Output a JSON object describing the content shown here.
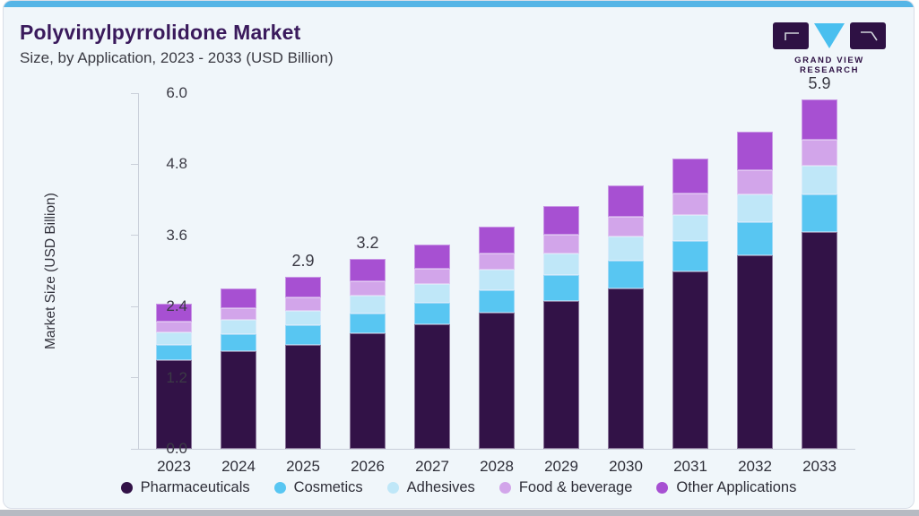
{
  "header": {
    "title": "Polyvinylpyrrolidone Market",
    "subtitle": "Size, by Application, 2023 - 2033 (USD Billion)"
  },
  "logo": {
    "text": "GRAND VIEW RESEARCH",
    "square_color": "#2e1144",
    "triangle_color": "#49bfef"
  },
  "colors": {
    "top_bar": "#55b5e6",
    "card_background": "#f0f6fa",
    "title_text": "#3a1a5c",
    "axis_line": "#c9cfd9",
    "tick_text": "#3b3b45"
  },
  "chart_data": {
    "type": "bar",
    "stacked": true,
    "title": "Polyvinylpyrrolidone Market Size, by Application, 2023 - 2033 (USD Billion)",
    "categories": [
      "2023",
      "2024",
      "2025",
      "2026",
      "2027",
      "2028",
      "2029",
      "2030",
      "2031",
      "2032",
      "2033"
    ],
    "series": [
      {
        "name": "Pharmaceuticals",
        "color": "#321247",
        "values": [
          1.49,
          1.65,
          1.75,
          1.95,
          2.1,
          2.29,
          2.5,
          2.71,
          2.99,
          3.26,
          3.66
        ]
      },
      {
        "name": "Cosmetics",
        "color": "#58c6f2",
        "values": [
          0.26,
          0.28,
          0.33,
          0.34,
          0.37,
          0.39,
          0.43,
          0.47,
          0.51,
          0.56,
          0.63
        ]
      },
      {
        "name": "Adhesives",
        "color": "#bfe7f8",
        "values": [
          0.22,
          0.24,
          0.25,
          0.29,
          0.31,
          0.34,
          0.37,
          0.4,
          0.44,
          0.48,
          0.48
        ]
      },
      {
        "name": "Food & beverage",
        "color": "#d2a5ea",
        "values": [
          0.18,
          0.2,
          0.22,
          0.24,
          0.26,
          0.28,
          0.31,
          0.33,
          0.37,
          0.4,
          0.45
        ]
      },
      {
        "name": "Other Applications",
        "color": "#a750d2",
        "values": [
          0.3,
          0.33,
          0.35,
          0.38,
          0.41,
          0.45,
          0.49,
          0.54,
          0.59,
          0.65,
          0.68
        ]
      }
    ],
    "totals": [
      2.45,
      2.7,
      2.9,
      3.2,
      3.45,
      3.75,
      4.1,
      4.45,
      4.9,
      5.35,
      5.9
    ],
    "bar_labels": [
      "",
      "",
      "2.9",
      "3.2",
      "",
      "",
      "",
      "",
      "",
      "",
      "5.9"
    ],
    "ylabel": "Market Size (USD Billion)",
    "yticks": [
      "0.0",
      "1.2",
      "2.4",
      "3.6",
      "4.8",
      "6.0"
    ],
    "ylim": [
      0,
      6
    ],
    "grid": false,
    "legend_position": "bottom"
  }
}
